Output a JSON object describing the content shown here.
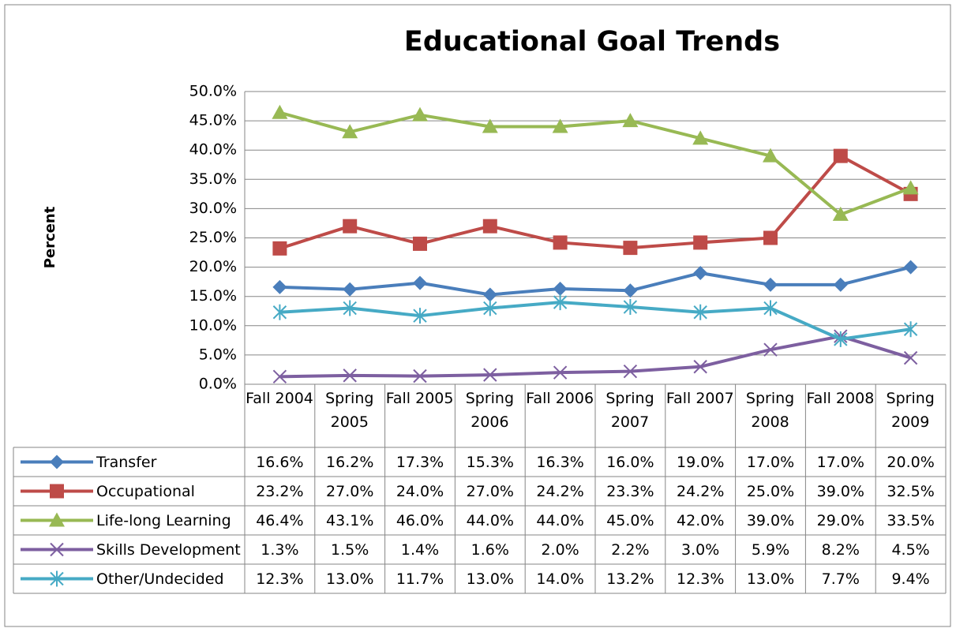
{
  "chart_data": {
    "type": "line",
    "title": "Educational Goal Trends",
    "y_label": "Percent",
    "categories": [
      "Fall 2004",
      "Spring 2005",
      "Fall 2005",
      "Spring 2006",
      "Fall 2006",
      "Spring 2007",
      "Fall 2007",
      "Spring 2008",
      "Fall 2008",
      "Spring 2009"
    ],
    "ylim": [
      0,
      50
    ],
    "yticks": [
      {
        "value": 0,
        "label": "0.0%"
      },
      {
        "value": 5,
        "label": "5.0%"
      },
      {
        "value": 10,
        "label": "10.0%"
      },
      {
        "value": 15,
        "label": "15.0%"
      },
      {
        "value": 20,
        "label": "20.0%"
      },
      {
        "value": 25,
        "label": "25.0%"
      },
      {
        "value": 30,
        "label": "30.0%"
      },
      {
        "value": 35,
        "label": "35.0%"
      },
      {
        "value": 40,
        "label": "40.0%"
      },
      {
        "value": 45,
        "label": "45.0%"
      },
      {
        "value": 50,
        "label": "50.0%"
      }
    ],
    "grid": true,
    "data_table": true,
    "series": [
      {
        "name": "Transfer",
        "color": "#4a7ebb",
        "marker": "diamond",
        "values": [
          16.6,
          16.2,
          17.3,
          15.3,
          16.3,
          16.0,
          19.0,
          17.0,
          17.0,
          20.0
        ],
        "value_labels": [
          "16.6%",
          "16.2%",
          "17.3%",
          "15.3%",
          "16.3%",
          "16.0%",
          "19.0%",
          "17.0%",
          "17.0%",
          "20.0%"
        ]
      },
      {
        "name": "Occupational",
        "color": "#be4b48",
        "marker": "square",
        "values": [
          23.2,
          27.0,
          24.0,
          27.0,
          24.2,
          23.3,
          24.2,
          25.0,
          39.0,
          32.5
        ],
        "value_labels": [
          "23.2%",
          "27.0%",
          "24.0%",
          "27.0%",
          "24.2%",
          "23.3%",
          "24.2%",
          "25.0%",
          "39.0%",
          "32.5%"
        ]
      },
      {
        "name": "Life-long Learning",
        "color": "#98b954",
        "marker": "triangle",
        "values": [
          46.4,
          43.1,
          46.0,
          44.0,
          44.0,
          45.0,
          42.0,
          39.0,
          29.0,
          33.5
        ],
        "value_labels": [
          "46.4%",
          "43.1%",
          "46.0%",
          "44.0%",
          "44.0%",
          "45.0%",
          "42.0%",
          "39.0%",
          "29.0%",
          "33.5%"
        ]
      },
      {
        "name": "Skills Development",
        "color": "#7d5fa0",
        "marker": "x",
        "values": [
          1.3,
          1.5,
          1.4,
          1.6,
          2.0,
          2.2,
          3.0,
          5.9,
          8.2,
          4.5
        ],
        "value_labels": [
          "1.3%",
          "1.5%",
          "1.4%",
          "1.6%",
          "2.0%",
          "2.2%",
          "3.0%",
          "5.9%",
          "8.2%",
          "4.5%"
        ]
      },
      {
        "name": "Other/Undecided",
        "color": "#46aac5",
        "marker": "star",
        "values": [
          12.3,
          13.0,
          11.7,
          13.0,
          14.0,
          13.2,
          12.3,
          13.0,
          7.7,
          9.4
        ],
        "value_labels": [
          "12.3%",
          "13.0%",
          "11.7%",
          "13.0%",
          "14.0%",
          "13.2%",
          "12.3%",
          "13.0%",
          "7.7%",
          "9.4%"
        ]
      }
    ]
  }
}
